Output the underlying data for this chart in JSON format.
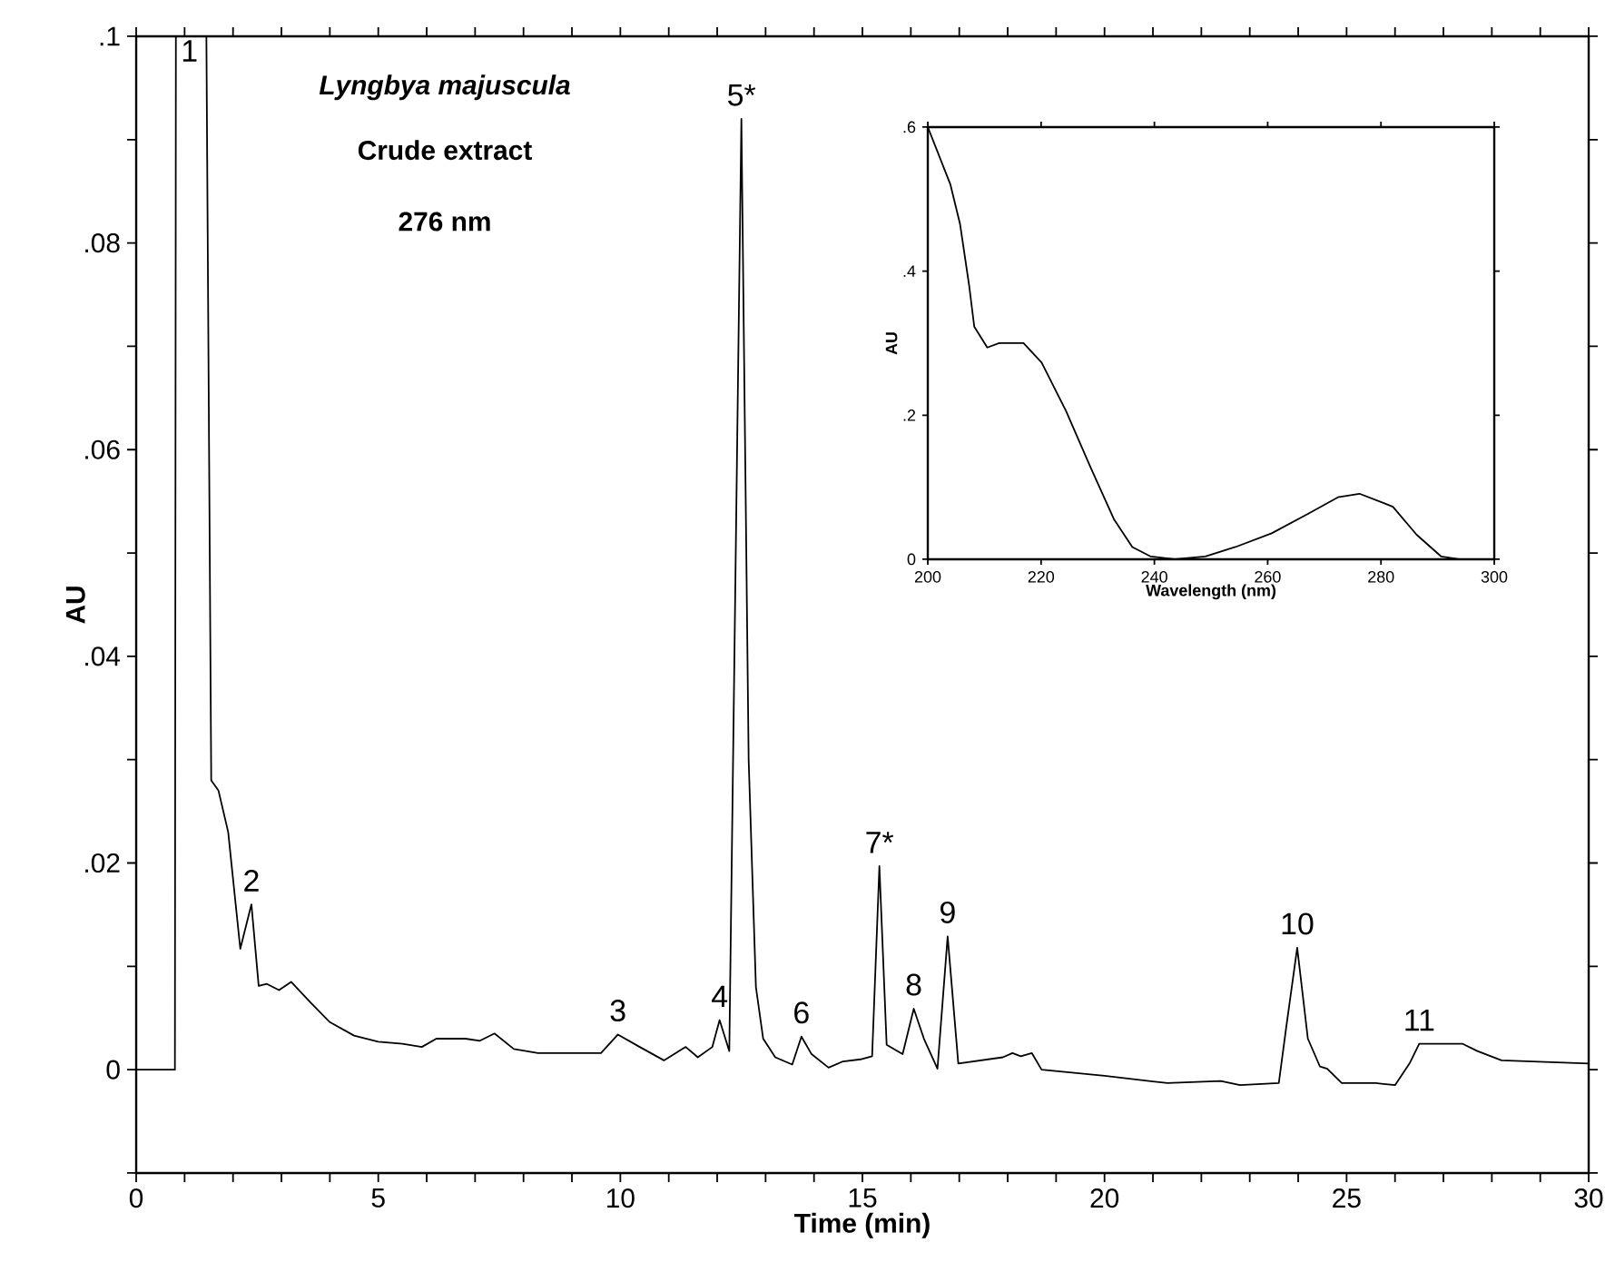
{
  "chart_data": [
    {
      "type": "line",
      "title": "Lyngbya majuscula",
      "subtitle": "Crude extract",
      "xlabel": "Time (min)",
      "ylabel": "AU",
      "marker": "none",
      "line_style": "solid",
      "xlim": [
        0,
        30
      ],
      "ylim": [
        -0.01,
        0.1
      ],
      "xticks": [
        0,
        {
          "value": 1,
          "label": null
        },
        {
          "value": 2,
          "label": null
        },
        {
          "value": 3,
          "label": null
        },
        {
          "value": 4,
          "label": null
        },
        5,
        {
          "value": 6,
          "label": null
        },
        {
          "value": 7,
          "label": null
        },
        {
          "value": 8,
          "label": null
        },
        {
          "value": 9,
          "label": null
        },
        10,
        {
          "value": 11,
          "label": null
        },
        {
          "value": 12,
          "label": null
        },
        {
          "value": 13,
          "label": null
        },
        {
          "value": 14,
          "label": null
        },
        15,
        {
          "value": 16,
          "label": null
        },
        {
          "value": 17,
          "label": null
        },
        {
          "value": 18,
          "label": null
        },
        {
          "value": 19,
          "label": null
        },
        20,
        {
          "value": 21,
          "label": null
        },
        {
          "value": 22,
          "label": null
        },
        {
          "value": 23,
          "label": null
        },
        {
          "value": 24,
          "label": null
        },
        25,
        {
          "value": 26,
          "label": null
        },
        {
          "value": 27,
          "label": null
        },
        {
          "value": 28,
          "label": null
        },
        {
          "value": 29,
          "label": null
        },
        30
      ],
      "yticks": [
        {
          "value": -0.01,
          "label": null
        },
        0,
        {
          "value": 0.01,
          "label": null
        },
        {
          "value": 0.02,
          "label": ".02"
        },
        {
          "value": 0.03,
          "label": null
        },
        {
          "value": 0.04,
          "label": ".04"
        },
        {
          "value": 0.05,
          "label": null
        },
        {
          "value": 0.06,
          "label": ".06"
        },
        {
          "value": 0.07,
          "label": null
        },
        {
          "value": 0.08,
          "label": ".08"
        },
        {
          "value": 0.09,
          "label": null
        },
        {
          "value": 0.1,
          "label": ".1"
        }
      ],
      "series": [
        {
          "color": "#000000",
          "x": [
            0,
            0.8,
            0.82,
            1.45,
            1.55,
            1.7,
            1.9,
            2.15,
            2.38,
            2.53,
            2.7,
            2.95,
            3.2,
            3.6,
            4.0,
            4.5,
            5.0,
            5.5,
            5.9,
            6.2,
            6.8,
            7.1,
            7.4,
            7.8,
            8.3,
            9.6,
            9.95,
            10.4,
            10.9,
            11.35,
            11.6,
            11.9,
            12.05,
            12.25,
            12.5,
            12.65,
            12.8,
            12.95,
            13.2,
            13.55,
            13.74,
            13.95,
            14.3,
            14.6,
            14.96,
            15.2,
            15.35,
            15.5,
            15.83,
            16.06,
            16.27,
            16.55,
            16.76,
            16.98,
            17.9,
            18.1,
            18.27,
            18.5,
            18.7,
            20.0,
            21.3,
            22.4,
            22.8,
            23.6,
            23.75,
            23.98,
            24.2,
            24.45,
            24.6,
            24.9,
            25.6,
            26.0,
            26.3,
            26.5,
            27.4,
            27.7,
            28.2,
            30
          ],
          "values": [
            0,
            0,
            0.1,
            0.1,
            0.028,
            0.027,
            0.023,
            0.0117,
            0.016,
            0.0081,
            0.0083,
            0.0077,
            0.0085,
            0.0065,
            0.0046,
            0.0033,
            0.0027,
            0.0025,
            0.0022,
            0.003,
            0.003,
            0.0028,
            0.0035,
            0.002,
            0.0016,
            0.0016,
            0.0034,
            0.0022,
            0.0009,
            0.0022,
            0.0012,
            0.0022,
            0.0048,
            0.0018,
            0.092,
            0.03,
            0.008,
            0.003,
            0.0012,
            0.0005,
            0.0032,
            0.0015,
            0.0002,
            0.0008,
            0.001,
            0.0013,
            0.0197,
            0.0024,
            0.0015,
            0.0059,
            0.003,
            0.0001,
            0.0129,
            0.0006,
            0.0012,
            0.0016,
            0.0013,
            0.0016,
            0,
            -0.0006,
            -0.0013,
            -0.0011,
            -0.0015,
            -0.0013,
            0.004,
            0.0118,
            0.003,
            0.0003,
            0.0001,
            -0.0013,
            -0.0013,
            -0.0015,
            0.0006,
            0.0025,
            0.0025,
            0.0018,
            0.0009,
            0.0006
          ]
        }
      ],
      "annotations": [
        "276 nm",
        {
          "text": "1",
          "x": 1.1,
          "y": 0.1
        },
        {
          "text": "2",
          "x": 2.38,
          "y": 0.016
        },
        {
          "text": "3",
          "x": 9.95,
          "y": 0.0034
        },
        {
          "text": "4",
          "x": 12.05,
          "y": 0.0048
        },
        {
          "text": "5*",
          "x": 12.5,
          "y": 0.092
        },
        {
          "text": "6",
          "x": 13.74,
          "y": 0.0032
        },
        {
          "text": "7*",
          "x": 15.35,
          "y": 0.0197
        },
        {
          "text": "8",
          "x": 16.06,
          "y": 0.0059
        },
        {
          "text": "9",
          "x": 16.76,
          "y": 0.0129
        },
        {
          "text": "10",
          "x": 23.98,
          "y": 0.0118
        },
        {
          "text": "11",
          "x": 26.5,
          "y": 0.0025
        }
      ]
    },
    {
      "type": "line",
      "xlabel": "Wavelength (nm)",
      "ylabel": "AU",
      "marker": "none",
      "line_style": "solid",
      "xlim": [
        200,
        300
      ],
      "ylim": [
        0,
        0.6
      ],
      "xticks": [
        200,
        220,
        240,
        260,
        280,
        300
      ],
      "yticks": [
        0,
        {
          "value": 0.2,
          "label": ".2"
        },
        {
          "value": 0.4,
          "label": ".4"
        },
        {
          "value": 0.6,
          "label": ".6"
        }
      ],
      "series": [
        {
          "color": "#000000",
          "x": [
            200,
            204,
            205.7,
            207.3,
            208.2,
            210.5,
            212.6,
            216.9,
            220.1,
            224.4,
            228.6,
            232.9,
            236.1,
            239.3,
            243.6,
            249,
            254.3,
            260.7,
            267.1,
            272.4,
            276.2,
            282.1,
            286.3,
            290.6,
            293.8,
            300
          ],
          "values": [
            0.6,
            0.52,
            0.465,
            0.38,
            0.323,
            0.294,
            0.3,
            0.3,
            0.273,
            0.206,
            0.13,
            0.055,
            0.017,
            0.004,
            0,
            0.004,
            0.017,
            0.036,
            0.063,
            0.086,
            0.091,
            0.073,
            0.034,
            0.004,
            0,
            0
          ]
        }
      ]
    }
  ]
}
